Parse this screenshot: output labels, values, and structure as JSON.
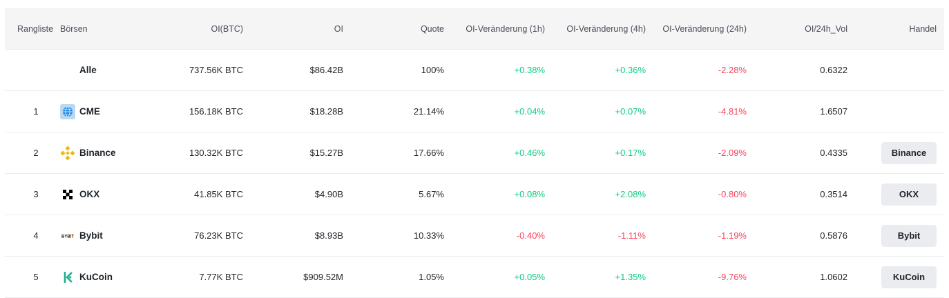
{
  "headers": {
    "rank": "Rangliste",
    "exchange": "Börsen",
    "oi_btc": "OI(BTC)",
    "oi": "OI",
    "share": "Quote",
    "chg_1h": "OI-Veränderung (1h)",
    "chg_4h": "OI-Veränderung (4h)",
    "chg_24h": "OI-Veränderung (24h)",
    "oi_vol": "OI/24h_Vol",
    "trade": "Handel"
  },
  "rows": [
    {
      "rank": "",
      "name": "Alle",
      "logo": "",
      "oi_btc": "737.56K BTC",
      "oi": "$86.42B",
      "share": "100%",
      "chg_1h": "+0.38%",
      "chg_4h": "+0.36%",
      "chg_24h": "-2.28%",
      "oi_vol": "0.6322",
      "trade": ""
    },
    {
      "rank": "1",
      "name": "CME",
      "logo": "globe-icon",
      "oi_btc": "156.18K BTC",
      "oi": "$18.28B",
      "share": "21.14%",
      "chg_1h": "+0.04%",
      "chg_4h": "+0.07%",
      "chg_24h": "-4.81%",
      "oi_vol": "1.6507",
      "trade": ""
    },
    {
      "rank": "2",
      "name": "Binance",
      "logo": "binance-logo-icon",
      "oi_btc": "130.32K BTC",
      "oi": "$15.27B",
      "share": "17.66%",
      "chg_1h": "+0.46%",
      "chg_4h": "+0.17%",
      "chg_24h": "-2.09%",
      "oi_vol": "0.4335",
      "trade": "Binance"
    },
    {
      "rank": "3",
      "name": "OKX",
      "logo": "okx-logo-icon",
      "oi_btc": "41.85K BTC",
      "oi": "$4.90B",
      "share": "5.67%",
      "chg_1h": "+0.08%",
      "chg_4h": "+2.08%",
      "chg_24h": "-0.80%",
      "oi_vol": "0.3514",
      "trade": "OKX"
    },
    {
      "rank": "4",
      "name": "Bybit",
      "logo": "bybit-logo-icon",
      "oi_btc": "76.23K BTC",
      "oi": "$8.93B",
      "share": "10.33%",
      "chg_1h": "-0.40%",
      "chg_4h": "-1.11%",
      "chg_24h": "-1.19%",
      "oi_vol": "0.5876",
      "trade": "Bybit"
    },
    {
      "rank": "5",
      "name": "KuCoin",
      "logo": "kucoin-logo-icon",
      "oi_btc": "7.77K BTC",
      "oi": "$909.52M",
      "share": "1.05%",
      "chg_1h": "+0.05%",
      "chg_4h": "+1.35%",
      "chg_24h": "-9.76%",
      "oi_vol": "1.0602",
      "trade": "KuCoin"
    }
  ],
  "colors": {
    "positive": "#0ecb81",
    "negative": "#f6465d",
    "header_bg": "#f5f5f5",
    "button_bg": "#eaecef",
    "binance_yellow": "#f0b90b",
    "kucoin_green": "#23af91"
  }
}
